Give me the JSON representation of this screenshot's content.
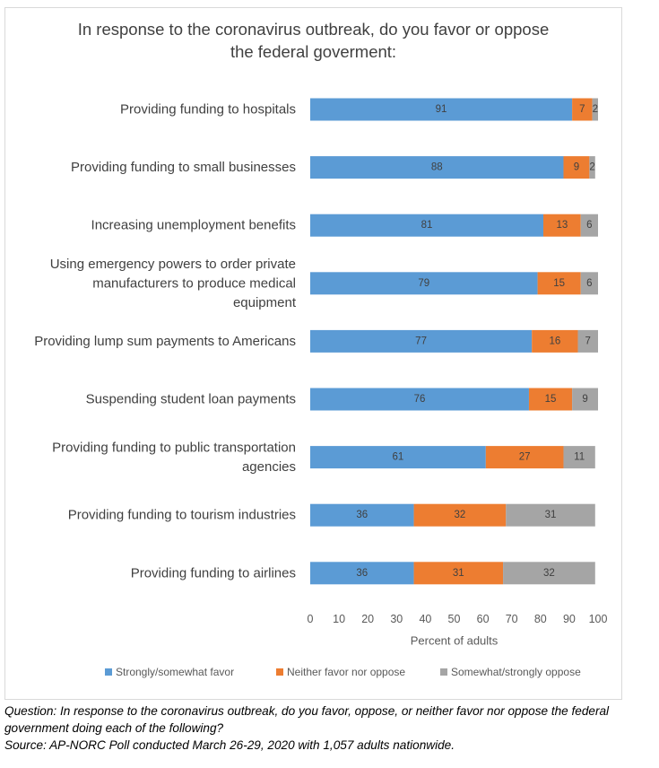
{
  "chart_data": {
    "type": "bar",
    "orientation": "horizontal",
    "stacked": true,
    "title_lines": [
      "In response to the coronavirus outbreak, do you favor or oppose",
      "the federal goverment:"
    ],
    "categories": [
      [
        "Providing funding to hospitals"
      ],
      [
        "Providing funding to small businesses"
      ],
      [
        "Increasing unemployment benefits"
      ],
      [
        "Using emergency powers to order private",
        "manufacturers to produce medical",
        "equipment"
      ],
      [
        "Providing lump sum payments to Americans"
      ],
      [
        "Suspending student loan payments"
      ],
      [
        "Providing funding to public transportation",
        "agencies"
      ],
      [
        "Providing funding to tourism industries"
      ],
      [
        "Providing funding to airlines"
      ]
    ],
    "series": [
      {
        "name": "Strongly/somewhat favor",
        "color": "#5b9bd5",
        "values": [
          91,
          88,
          81,
          79,
          77,
          76,
          61,
          36,
          36
        ]
      },
      {
        "name": "Neither favor nor oppose",
        "color": "#ed7d31",
        "values": [
          7,
          9,
          13,
          15,
          16,
          15,
          27,
          32,
          31
        ]
      },
      {
        "name": "Somewhat/strongly oppose",
        "color": "#a5a5a5",
        "values": [
          2,
          2,
          6,
          6,
          7,
          9,
          11,
          31,
          32
        ]
      }
    ],
    "xlabel": "Percent of adults",
    "ylabel": "",
    "xlim": [
      0,
      100
    ],
    "xticks": [
      0,
      10,
      20,
      30,
      40,
      50,
      60,
      70,
      80,
      90,
      100
    ],
    "grid": false,
    "legend_position": "bottom",
    "data_labels": true
  },
  "footnote": {
    "question": "Question: In response to the coronavirus outbreak, do you favor, oppose, or neither favor nor oppose the federal government doing each of the following?",
    "source": "Source: AP-NORC Poll conducted March 26-29, 2020 with 1,057 adults nationwide."
  }
}
